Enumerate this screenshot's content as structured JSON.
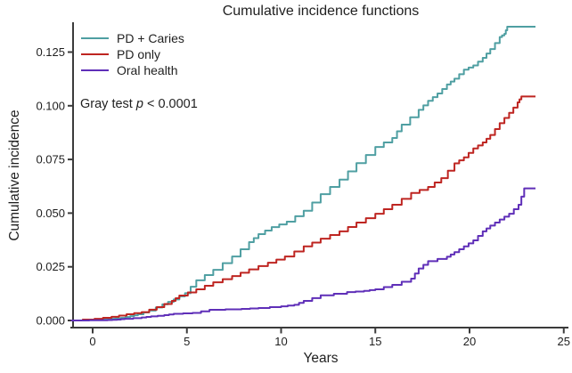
{
  "figure": {
    "background": "#ffffff",
    "axis_color": "#3b3b3b",
    "text_color": "#1f1f1f"
  },
  "chart_data": {
    "type": "line",
    "subtype": "step-cumulative-incidence",
    "title": "Cumulative incidence functions",
    "xlabel": "Years",
    "ylabel": "Cumulative incidence",
    "annotation": {
      "prefix": "Gray test ",
      "italic": "p",
      "suffix": " < 0.0001"
    },
    "legend_position": "top-left",
    "grid": false,
    "xlim": [
      -1.15,
      25.3
    ],
    "ylim": [
      0,
      0.142
    ],
    "x_ticks": [
      0,
      5,
      10,
      15,
      20,
      25
    ],
    "x_tick_labels": [
      "0",
      "5",
      "10",
      "15",
      "20",
      "25"
    ],
    "y_ticks": [
      0.0,
      0.025,
      0.05,
      0.075,
      0.1,
      0.125
    ],
    "y_tick_labels": [
      "0.000",
      "0.025",
      "0.050",
      "0.075",
      "0.100",
      "0.125"
    ],
    "series": [
      {
        "name": "PD + Caries",
        "color": "#4F9FA2",
        "points": [
          [
            -1.15,
            0
          ],
          [
            0.5,
            0.0004
          ],
          [
            0.9,
            0.0008
          ],
          [
            1.5,
            0.0012
          ],
          [
            2.0,
            0.002
          ],
          [
            2.4,
            0.0029
          ],
          [
            3.0,
            0.0046
          ],
          [
            3.7,
            0.0075
          ],
          [
            4.3,
            0.0098
          ],
          [
            4.9,
            0.0127
          ],
          [
            5.5,
            0.0187
          ],
          [
            6.4,
            0.0236
          ],
          [
            7.4,
            0.0298
          ],
          [
            8.3,
            0.0365
          ],
          [
            8.8,
            0.0402
          ],
          [
            9.5,
            0.0435
          ],
          [
            10.3,
            0.046
          ],
          [
            11.2,
            0.0511
          ],
          [
            12.1,
            0.0588
          ],
          [
            13.1,
            0.0656
          ],
          [
            14.0,
            0.0733
          ],
          [
            15.0,
            0.0808
          ],
          [
            15.9,
            0.085
          ],
          [
            16.4,
            0.0912
          ],
          [
            17.3,
            0.0981
          ],
          [
            17.8,
            0.1023
          ],
          [
            18.3,
            0.1057
          ],
          [
            18.8,
            0.1099
          ],
          [
            19.2,
            0.1126
          ],
          [
            19.7,
            0.1168
          ],
          [
            20.2,
            0.1188
          ],
          [
            20.7,
            0.1223
          ],
          [
            21.1,
            0.1264
          ],
          [
            21.6,
            0.132
          ],
          [
            21.85,
            0.1335
          ],
          [
            22.0,
            0.1368
          ],
          [
            23.5,
            0.1368
          ]
        ]
      },
      {
        "name": "PD only",
        "color": "#BE2521",
        "points": [
          [
            -1.15,
            0
          ],
          [
            0.1,
            0.0008
          ],
          [
            1.0,
            0.0017
          ],
          [
            1.8,
            0.0029
          ],
          [
            2.6,
            0.0039
          ],
          [
            3.4,
            0.0062
          ],
          [
            4.2,
            0.0091
          ],
          [
            4.6,
            0.0116
          ],
          [
            5.5,
            0.0145
          ],
          [
            6.4,
            0.0178
          ],
          [
            7.4,
            0.0207
          ],
          [
            8.3,
            0.0238
          ],
          [
            9.3,
            0.0269
          ],
          [
            10.2,
            0.0298
          ],
          [
            11.2,
            0.0345
          ],
          [
            12.1,
            0.0381
          ],
          [
            13.1,
            0.0415
          ],
          [
            14.0,
            0.0456
          ],
          [
            15.0,
            0.0497
          ],
          [
            15.9,
            0.0539
          ],
          [
            16.9,
            0.0594
          ],
          [
            17.8,
            0.0622
          ],
          [
            18.5,
            0.0663
          ],
          [
            19.2,
            0.0732
          ],
          [
            19.7,
            0.076
          ],
          [
            20.2,
            0.0801
          ],
          [
            20.7,
            0.0829
          ],
          [
            21.1,
            0.0864
          ],
          [
            21.6,
            0.0919
          ],
          [
            22.1,
            0.0967
          ],
          [
            22.55,
            0.1016
          ],
          [
            22.75,
            0.1043
          ],
          [
            23.5,
            0.1043
          ]
        ]
      },
      {
        "name": "Oral health",
        "color": "#5F2FB8",
        "points": [
          [
            -1.15,
            0
          ],
          [
            0.8,
            0.0002
          ],
          [
            1.3,
            0.0004
          ],
          [
            1.7,
            0.0008
          ],
          [
            2.6,
            0.0014
          ],
          [
            3.1,
            0.0019
          ],
          [
            3.8,
            0.0025
          ],
          [
            4.3,
            0.0031
          ],
          [
            5.3,
            0.0035
          ],
          [
            6.2,
            0.005
          ],
          [
            7.9,
            0.0054
          ],
          [
            8.8,
            0.0058
          ],
          [
            10.0,
            0.0066
          ],
          [
            10.7,
            0.0073
          ],
          [
            11.2,
            0.0091
          ],
          [
            12.1,
            0.0117
          ],
          [
            13.5,
            0.0132
          ],
          [
            14.4,
            0.0138
          ],
          [
            15.0,
            0.0145
          ],
          [
            15.9,
            0.0166
          ],
          [
            16.9,
            0.0195
          ],
          [
            17.3,
            0.0242
          ],
          [
            17.8,
            0.0276
          ],
          [
            18.8,
            0.0297
          ],
          [
            19.2,
            0.0318
          ],
          [
            19.7,
            0.0345
          ],
          [
            20.2,
            0.0373
          ],
          [
            20.7,
            0.0415
          ],
          [
            21.1,
            0.0442
          ],
          [
            21.6,
            0.047
          ],
          [
            22.1,
            0.0497
          ],
          [
            22.6,
            0.0539
          ],
          [
            22.9,
            0.0615
          ],
          [
            23.5,
            0.0615
          ]
        ]
      }
    ]
  }
}
